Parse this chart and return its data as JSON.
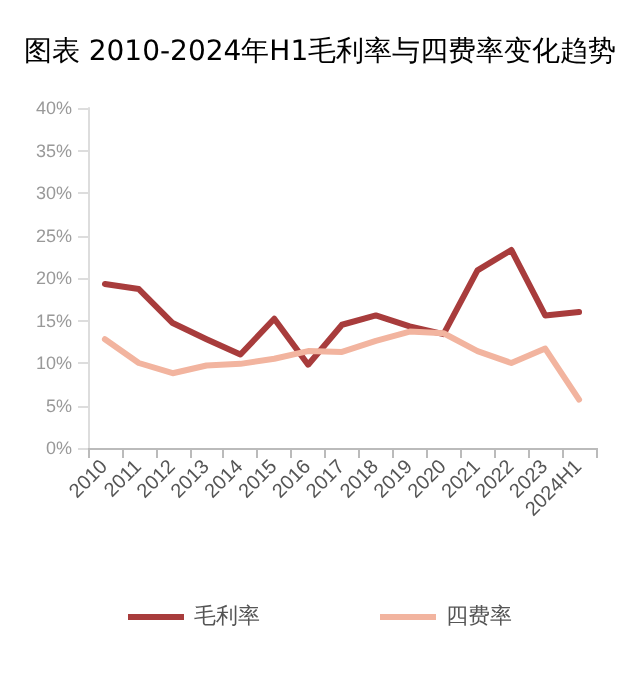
{
  "chart_data": {
    "type": "line",
    "title": "图表 2010-2024年H1毛利率与四费率变化趋势",
    "categories": [
      "2010",
      "2011",
      "2012",
      "2013",
      "2014",
      "2015",
      "2016",
      "2017",
      "2018",
      "2019",
      "2020",
      "2021",
      "2022",
      "2023",
      "2024H1"
    ],
    "series": [
      {
        "name": "毛利率",
        "color": "#a83c3c",
        "values": [
          19.3,
          18.7,
          14.7,
          12.8,
          11.0,
          15.2,
          9.8,
          14.5,
          15.6,
          14.3,
          13.4,
          20.9,
          23.3,
          15.6,
          16.0
        ]
      },
      {
        "name": "四费率",
        "color": "#f2b49f",
        "values": [
          12.8,
          10.0,
          8.8,
          9.7,
          9.9,
          10.5,
          11.4,
          11.3,
          12.6,
          13.7,
          13.5,
          11.4,
          10.0,
          11.7,
          5.7
        ]
      }
    ],
    "ylim": [
      0,
      40
    ],
    "yticks": [
      {
        "value": 0,
        "label": "0%"
      },
      {
        "value": 5,
        "label": "5%"
      },
      {
        "value": 10,
        "label": "10%"
      },
      {
        "value": 15,
        "label": "15%"
      },
      {
        "value": 20,
        "label": "20%"
      },
      {
        "value": 25,
        "label": "25%"
      },
      {
        "value": 30,
        "label": "30%"
      },
      {
        "value": 35,
        "label": "35%"
      },
      {
        "value": 40,
        "label": "40%"
      }
    ],
    "grid": false,
    "legend": "bottom",
    "marker": "none",
    "line_style": "solid"
  }
}
